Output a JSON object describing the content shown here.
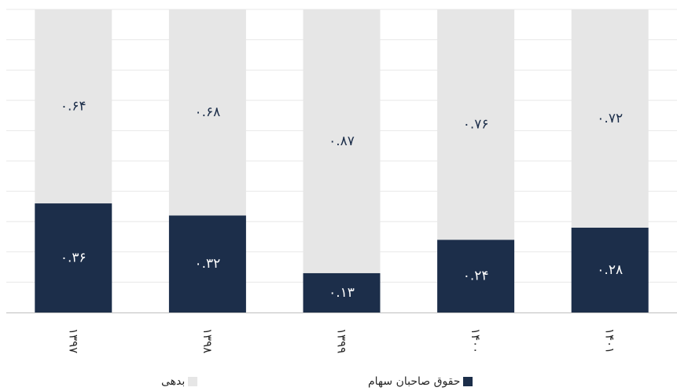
{
  "chart_data": {
    "type": "bar",
    "stacked": true,
    "percent_stacked": true,
    "categories": [
      "۱۳۹۷",
      "۱۳۹۸",
      "۱۳۹۹",
      "۱۴۰۰",
      "۱۴۰۱"
    ],
    "series": [
      {
        "name": "حقوق صاحبان سهام",
        "values": [
          0.36,
          0.32,
          0.13,
          0.24,
          0.28
        ],
        "labels": [
          "۰.۳۶",
          "۰.۳۲",
          "۰.۱۳",
          "۰.۲۴",
          "۰.۲۸"
        ],
        "color": "#1c2e4a"
      },
      {
        "name": "بدهی",
        "values": [
          0.64,
          0.68,
          0.87,
          0.76,
          0.72
        ],
        "labels": [
          "۰.۶۴",
          "۰.۶۸",
          "۰.۸۷",
          "۰.۷۶",
          "۰.۷۲"
        ],
        "color": "#e6e6e6"
      }
    ],
    "ylim": [
      0,
      1
    ],
    "grid": true,
    "legend_position": "bottom",
    "title": "",
    "xlabel": "",
    "ylabel": ""
  },
  "colors": {
    "equity": "#1c2e4a",
    "debt": "#e6e6e6",
    "grid": "#e8e8e8",
    "axis": "#bfbfbf",
    "label_on_dark": "#ffffff",
    "label_on_light": "#1c2e4a"
  }
}
